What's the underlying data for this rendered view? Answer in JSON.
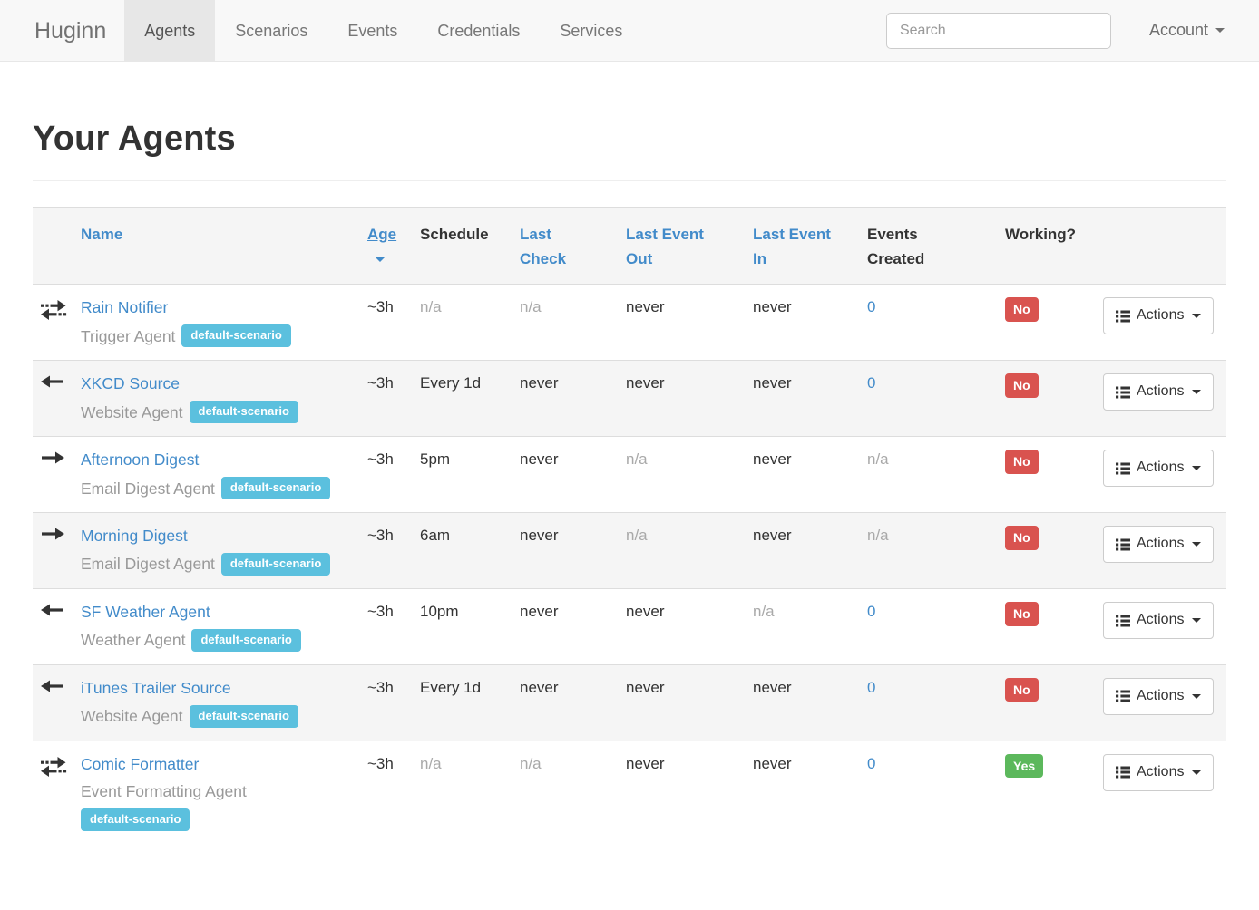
{
  "navbar": {
    "brand": "Huginn",
    "items": [
      {
        "label": "Agents",
        "active": true
      },
      {
        "label": "Scenarios",
        "active": false
      },
      {
        "label": "Events",
        "active": false
      },
      {
        "label": "Credentials",
        "active": false
      },
      {
        "label": "Services",
        "active": false
      }
    ],
    "search_placeholder": "Search",
    "account_label": "Account"
  },
  "page": {
    "title": "Your Agents"
  },
  "table": {
    "headers": {
      "name": "Name",
      "age": "Age",
      "schedule": "Schedule",
      "last_check": "Last Check",
      "last_event_out": "Last Event Out",
      "last_event_in": "Last Event In",
      "events_created": "Events Created",
      "working": "Working?"
    },
    "sorted_by": "age",
    "actions_label": "Actions",
    "rows": [
      {
        "icon": "exchange-arrows",
        "name": "Rain Notifier",
        "type": "Trigger Agent",
        "scenario": "default-scenario",
        "age": "~3h",
        "schedule": "n/a",
        "last_check": "n/a",
        "last_event_out": "never",
        "last_event_in": "never",
        "events_created": "0",
        "working": "No"
      },
      {
        "icon": "arrow-left",
        "name": "XKCD Source",
        "type": "Website Agent",
        "scenario": "default-scenario",
        "age": "~3h",
        "schedule": "Every 1d",
        "last_check": "never",
        "last_event_out": "never",
        "last_event_in": "never",
        "events_created": "0",
        "working": "No"
      },
      {
        "icon": "arrow-right",
        "name": "Afternoon Digest",
        "type": "Email Digest Agent",
        "scenario": "default-scenario",
        "age": "~3h",
        "schedule": "5pm",
        "last_check": "never",
        "last_event_out": "n/a",
        "last_event_in": "never",
        "events_created": "n/a",
        "working": "No"
      },
      {
        "icon": "arrow-right",
        "name": "Morning Digest",
        "type": "Email Digest Agent",
        "scenario": "default-scenario",
        "age": "~3h",
        "schedule": "6am",
        "last_check": "never",
        "last_event_out": "n/a",
        "last_event_in": "never",
        "events_created": "n/a",
        "working": "No"
      },
      {
        "icon": "arrow-left",
        "name": "SF Weather Agent",
        "type": "Weather Agent",
        "scenario": "default-scenario",
        "age": "~3h",
        "schedule": "10pm",
        "last_check": "never",
        "last_event_out": "never",
        "last_event_in": "n/a",
        "events_created": "0",
        "working": "No"
      },
      {
        "icon": "arrow-left",
        "name": "iTunes Trailer Source",
        "type": "Website Agent",
        "scenario": "default-scenario",
        "age": "~3h",
        "schedule": "Every 1d",
        "last_check": "never",
        "last_event_out": "never",
        "last_event_in": "never",
        "events_created": "0",
        "working": "No"
      },
      {
        "icon": "exchange-arrows",
        "name": "Comic Formatter",
        "type": "Event Formatting Agent",
        "scenario": "default-scenario",
        "age": "~3h",
        "schedule": "n/a",
        "last_check": "n/a",
        "last_event_out": "never",
        "last_event_in": "never",
        "events_created": "0",
        "working": "Yes"
      }
    ]
  },
  "colors": {
    "link": "#428bca",
    "badge_info": "#5bc0de",
    "badge_danger": "#d9534f",
    "badge_success": "#5cb85c",
    "navbar_bg": "#f8f8f8",
    "navbar_active_bg": "#e7e7e7"
  }
}
